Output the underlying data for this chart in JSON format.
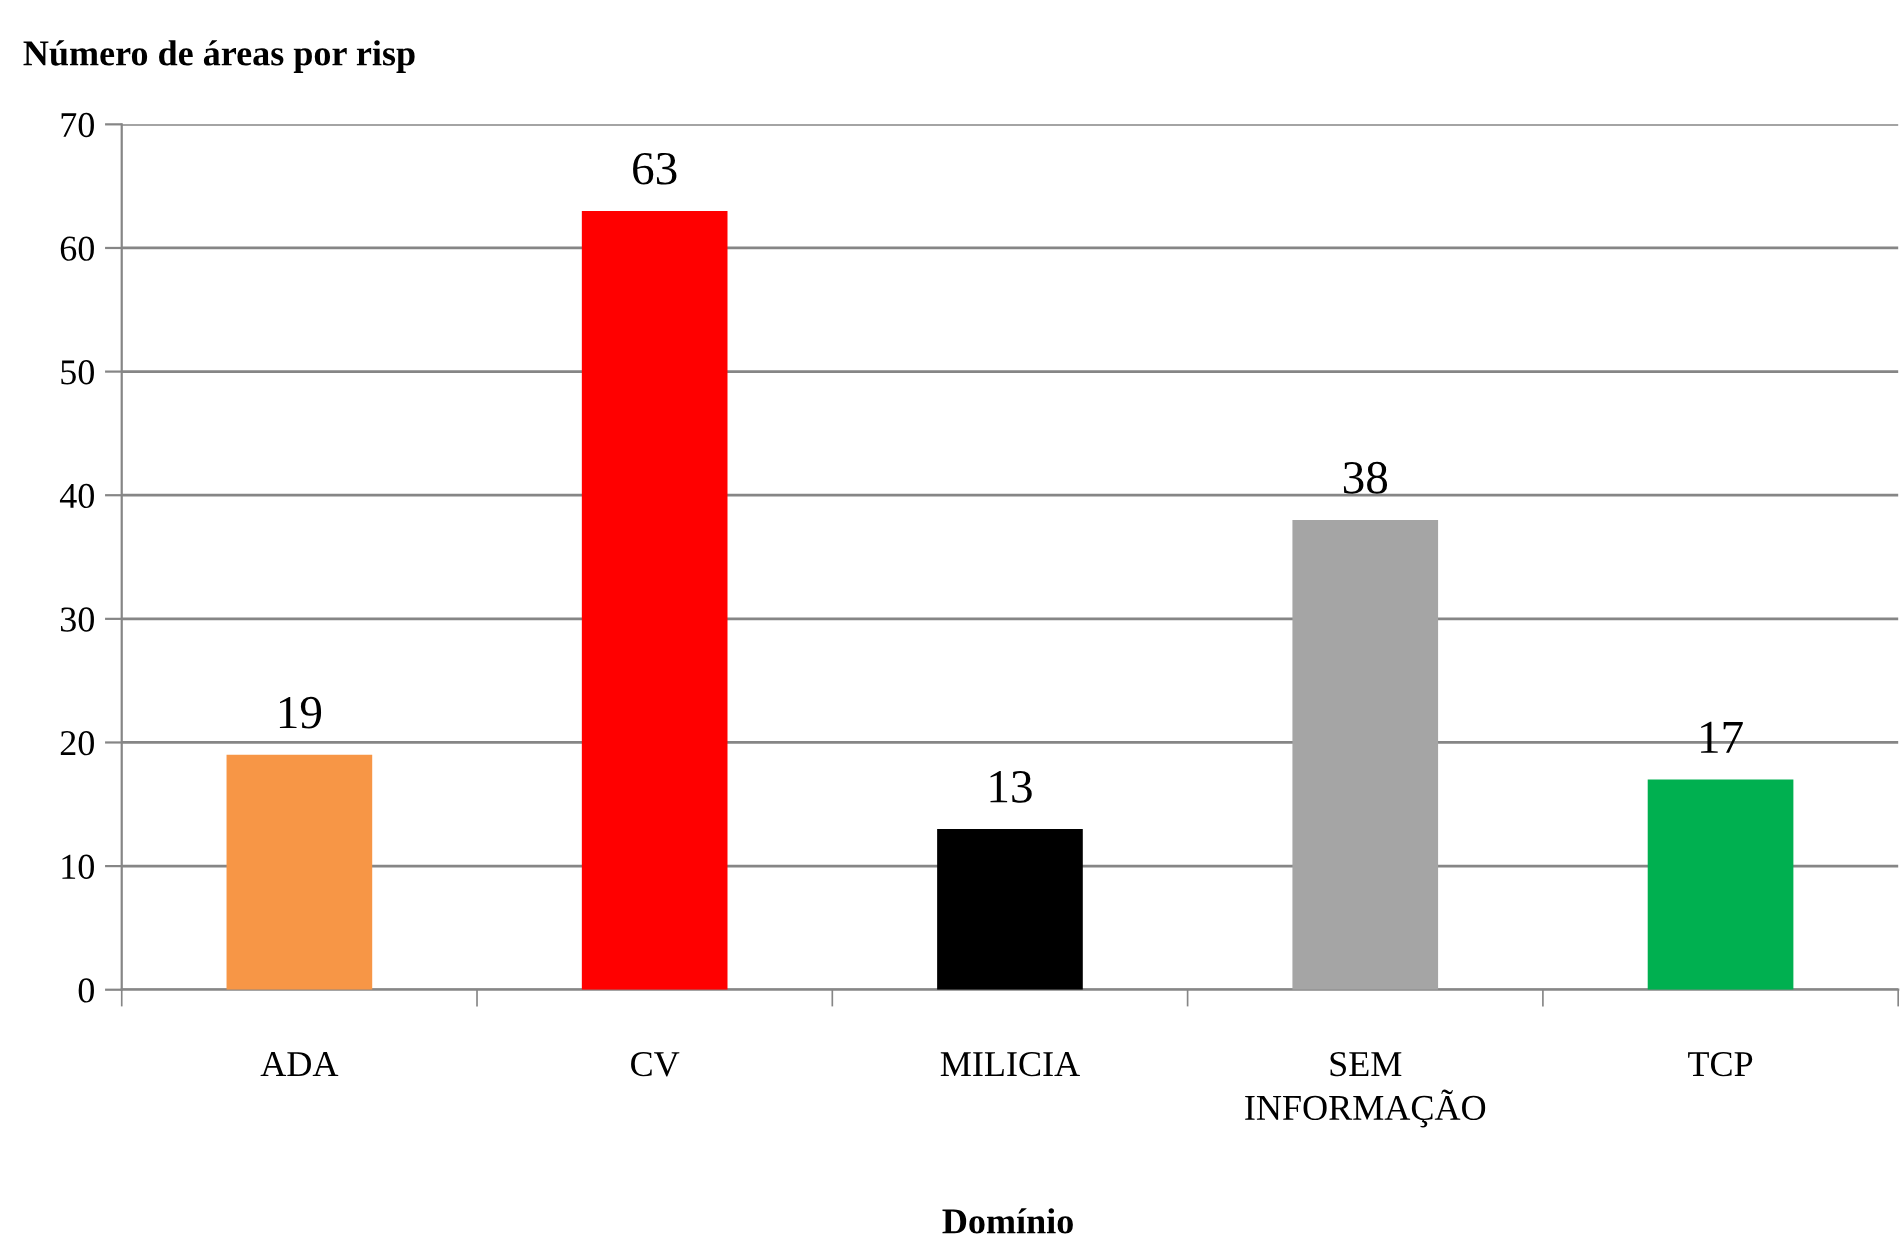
{
  "chart_data": {
    "type": "bar",
    "ylabel": "Número de áreas por risp",
    "xlabel": "Domínio",
    "categories": [
      "ADA",
      "CV",
      "MILICIA",
      "SEM\nINFORMAÇÃO",
      "TCP"
    ],
    "values": [
      19,
      63,
      13,
      38,
      17
    ],
    "colors": [
      "#f79646",
      "#ff0000",
      "#000000",
      "#a5a5a5",
      "#00b050"
    ],
    "ylim": [
      0,
      70
    ],
    "yticks": [
      0,
      10,
      20,
      30,
      40,
      50,
      60,
      70
    ],
    "grid": "y",
    "data_labels": true
  }
}
